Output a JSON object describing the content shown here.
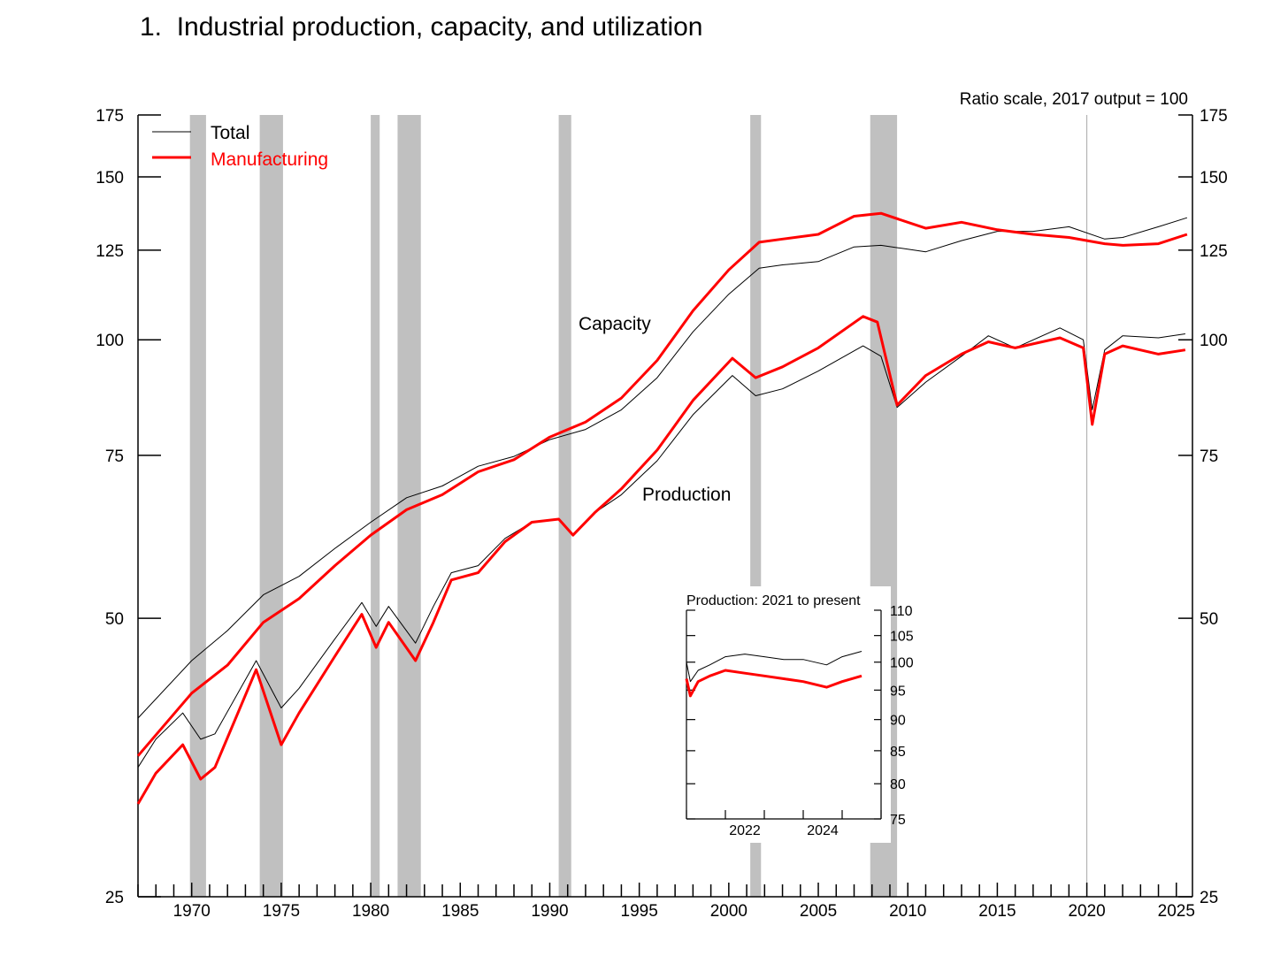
{
  "page": {
    "title": "1.  Industrial production, capacity, and utilization"
  },
  "chart_data": [
    {
      "type": "line",
      "title": "1.  Industrial production, capacity, and utilization",
      "note": "Ratio scale, 2017 output = 100",
      "y_scale": "log",
      "xlim": [
        1967,
        2025.9
      ],
      "ylim": [
        25,
        175
      ],
      "y_ticks": [
        25,
        50,
        75,
        100,
        125,
        150,
        175
      ],
      "x_ticks": [
        1970,
        1975,
        1980,
        1985,
        1990,
        1995,
        2000,
        2005,
        2010,
        2015,
        2020,
        2025
      ],
      "legend": {
        "placement": "top-left",
        "entries": [
          {
            "label": "Total",
            "color": "#000000"
          },
          {
            "label": "Manufacturing",
            "color": "#ff0000"
          }
        ]
      },
      "annotations": [
        "Capacity",
        "Production"
      ],
      "recessions": [
        [
          1969.9,
          1970.8
        ],
        [
          1973.8,
          1975.1
        ],
        [
          1980.0,
          1980.5
        ],
        [
          1981.5,
          1982.8
        ],
        [
          1990.5,
          1991.2
        ],
        [
          2001.2,
          2001.8
        ],
        [
          2007.9,
          2009.4
        ]
      ],
      "reference_line_x": 2020.0,
      "series": [
        {
          "name": "Total",
          "group": "Capacity",
          "color": "#000000",
          "points": [
            [
              1967,
              39.0
            ],
            [
              1970,
              45.0
            ],
            [
              1972,
              48.5
            ],
            [
              1974,
              53.0
            ],
            [
              1976,
              55.5
            ],
            [
              1978,
              59.5
            ],
            [
              1980,
              63.5
            ],
            [
              1982,
              67.5
            ],
            [
              1984,
              69.5
            ],
            [
              1986,
              73.0
            ],
            [
              1988,
              74.8
            ],
            [
              1990,
              78.0
            ],
            [
              1992,
              80.0
            ],
            [
              1994,
              84.0
            ],
            [
              1996,
              91.0
            ],
            [
              1998,
              102.0
            ],
            [
              2000,
              112.0
            ],
            [
              2001.7,
              119.5
            ],
            [
              2003,
              120.5
            ],
            [
              2005,
              121.5
            ],
            [
              2007,
              126.0
            ],
            [
              2008.5,
              126.5
            ],
            [
              2011,
              124.5
            ],
            [
              2013,
              128.0
            ],
            [
              2015,
              131.0
            ],
            [
              2017,
              131.0
            ],
            [
              2019,
              132.5
            ],
            [
              2021,
              128.5
            ],
            [
              2022,
              129.0
            ],
            [
              2024,
              132.5
            ],
            [
              2025.6,
              135.5
            ]
          ]
        },
        {
          "name": "Manufacturing",
          "group": "Capacity",
          "color": "#ff0000",
          "points": [
            [
              1967,
              35.5
            ],
            [
              1970,
              41.5
            ],
            [
              1972,
              44.5
            ],
            [
              1974,
              49.5
            ],
            [
              1976,
              52.5
            ],
            [
              1978,
              57.0
            ],
            [
              1980,
              61.5
            ],
            [
              1982,
              65.5
            ],
            [
              1984,
              68.0
            ],
            [
              1986,
              72.0
            ],
            [
              1988,
              74.2
            ],
            [
              1990,
              78.5
            ],
            [
              1992,
              81.5
            ],
            [
              1994,
              86.5
            ],
            [
              1996,
              95.0
            ],
            [
              1998,
              107.5
            ],
            [
              2000,
              119.0
            ],
            [
              2001.7,
              127.5
            ],
            [
              2003,
              128.5
            ],
            [
              2005,
              130.0
            ],
            [
              2007,
              136.0
            ],
            [
              2008.5,
              137.0
            ],
            [
              2011,
              132.0
            ],
            [
              2013,
              134.0
            ],
            [
              2015,
              131.5
            ],
            [
              2017,
              130.0
            ],
            [
              2019,
              129.0
            ],
            [
              2021,
              127.0
            ],
            [
              2022,
              126.5
            ],
            [
              2024,
              127.0
            ],
            [
              2025.6,
              130.0
            ]
          ]
        },
        {
          "name": "Total",
          "group": "Production",
          "color": "#000000",
          "points": [
            [
              1967,
              34.5
            ],
            [
              1968,
              37.0
            ],
            [
              1969.5,
              39.5
            ],
            [
              1970.5,
              37.0
            ],
            [
              1971.3,
              37.5
            ],
            [
              1973.6,
              45.0
            ],
            [
              1975.0,
              40.0
            ],
            [
              1976,
              42.0
            ],
            [
              1978,
              47.5
            ],
            [
              1979.5,
              52.0
            ],
            [
              1980.3,
              49.0
            ],
            [
              1981.0,
              51.5
            ],
            [
              1982.5,
              47.0
            ],
            [
              1983.5,
              51.5
            ],
            [
              1984.5,
              56.0
            ],
            [
              1986,
              57.0
            ],
            [
              1987.5,
              61.0
            ],
            [
              1989,
              63.5
            ],
            [
              1990.5,
              64.0
            ],
            [
              1991.3,
              61.5
            ],
            [
              1992.5,
              65.0
            ],
            [
              1994,
              68.0
            ],
            [
              1996,
              74.0
            ],
            [
              1998,
              83.0
            ],
            [
              2000.2,
              91.5
            ],
            [
              2001.5,
              87.0
            ],
            [
              2003,
              88.5
            ],
            [
              2005,
              92.5
            ],
            [
              2007.5,
              98.5
            ],
            [
              2008.5,
              96.0
            ],
            [
              2009.4,
              84.5
            ],
            [
              2011,
              90.0
            ],
            [
              2013,
              96.0
            ],
            [
              2014.5,
              101.0
            ],
            [
              2016,
              98.0
            ],
            [
              2018.5,
              103.0
            ],
            [
              2019.8,
              100.0
            ],
            [
              2020.3,
              84.0
            ],
            [
              2021.0,
              97.5
            ],
            [
              2022.0,
              101.0
            ],
            [
              2024,
              100.5
            ],
            [
              2025.5,
              101.5
            ]
          ]
        },
        {
          "name": "Manufacturing",
          "group": "Production",
          "color": "#ff0000",
          "points": [
            [
              1967,
              31.5
            ],
            [
              1968,
              34.0
            ],
            [
              1969.5,
              36.5
            ],
            [
              1970.5,
              33.5
            ],
            [
              1971.3,
              34.5
            ],
            [
              1973.6,
              44.0
            ],
            [
              1975.0,
              36.5
            ],
            [
              1976,
              39.5
            ],
            [
              1978,
              45.5
            ],
            [
              1979.5,
              50.5
            ],
            [
              1980.3,
              46.5
            ],
            [
              1981.0,
              49.5
            ],
            [
              1982.5,
              45.0
            ],
            [
              1983.5,
              49.5
            ],
            [
              1984.5,
              55.0
            ],
            [
              1986,
              56.0
            ],
            [
              1987.5,
              60.5
            ],
            [
              1989,
              63.5
            ],
            [
              1990.5,
              64.0
            ],
            [
              1991.3,
              61.5
            ],
            [
              1992.5,
              65.0
            ],
            [
              1994,
              69.0
            ],
            [
              1996,
              76.0
            ],
            [
              1998,
              86.0
            ],
            [
              2000.2,
              95.5
            ],
            [
              2001.5,
              91.0
            ],
            [
              2003,
              93.5
            ],
            [
              2005,
              98.0
            ],
            [
              2007.5,
              106.0
            ],
            [
              2008.3,
              104.5
            ],
            [
              2009.4,
              85.0
            ],
            [
              2011,
              91.5
            ],
            [
              2013,
              96.5
            ],
            [
              2014.5,
              99.5
            ],
            [
              2016,
              98.0
            ],
            [
              2018.5,
              100.5
            ],
            [
              2019.8,
              98.0
            ],
            [
              2020.3,
              81.0
            ],
            [
              2021.0,
              96.5
            ],
            [
              2022.0,
              98.5
            ],
            [
              2024,
              96.5
            ],
            [
              2025.5,
              97.5
            ]
          ]
        }
      ]
    },
    {
      "type": "line",
      "title": "Production: 2021 to present",
      "xlim": [
        2021.0,
        2026.0
      ],
      "ylim": [
        75,
        110
      ],
      "y_ticks": [
        75,
        80,
        85,
        90,
        95,
        100,
        105,
        110
      ],
      "x_ticks": [
        2022,
        2024
      ],
      "series": [
        {
          "name": "Total",
          "color": "#000000",
          "points": [
            [
              2021.0,
              100.0
            ],
            [
              2021.1,
              96.5
            ],
            [
              2021.3,
              98.5
            ],
            [
              2021.6,
              99.5
            ],
            [
              2022.0,
              101.0
            ],
            [
              2022.5,
              101.5
            ],
            [
              2023.0,
              101.0
            ],
            [
              2023.5,
              100.5
            ],
            [
              2024.0,
              100.5
            ],
            [
              2024.6,
              99.5
            ],
            [
              2025.0,
              101.0
            ],
            [
              2025.5,
              102.0
            ]
          ]
        },
        {
          "name": "Manufacturing",
          "color": "#ff0000",
          "points": [
            [
              2021.0,
              97.0
            ],
            [
              2021.1,
              94.0
            ],
            [
              2021.3,
              96.5
            ],
            [
              2021.6,
              97.5
            ],
            [
              2022.0,
              98.5
            ],
            [
              2022.5,
              98.0
            ],
            [
              2023.0,
              97.5
            ],
            [
              2023.5,
              97.0
            ],
            [
              2024.0,
              96.5
            ],
            [
              2024.6,
              95.5
            ],
            [
              2025.0,
              96.5
            ],
            [
              2025.5,
              97.5
            ]
          ]
        }
      ]
    }
  ]
}
